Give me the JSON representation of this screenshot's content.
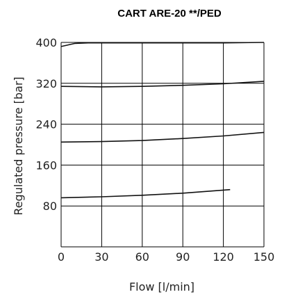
{
  "chart_data": {
    "type": "line",
    "title": "CART  ARE-20 **/PED",
    "xlabel": "Flow [l/min]",
    "ylabel": "Regulated pressure [bar]",
    "xlim": [
      0,
      150
    ],
    "ylim": [
      0,
      400
    ],
    "x_ticks": [
      0,
      30,
      60,
      90,
      120,
      150
    ],
    "y_ticks": [
      80,
      160,
      240,
      320,
      400
    ],
    "grid": true,
    "series": [
      {
        "x": [
          0,
          10,
          20,
          30,
          60,
          90,
          120,
          150
        ],
        "values": [
          392,
          398,
          399,
          399,
          399,
          399,
          399,
          400
        ]
      },
      {
        "x": [
          0,
          30,
          60,
          90,
          120,
          150
        ],
        "values": [
          314,
          313,
          314,
          316,
          319,
          324
        ]
      },
      {
        "x": [
          0,
          30,
          60,
          90,
          120,
          150
        ],
        "values": [
          205,
          206,
          208,
          212,
          217,
          224
        ]
      },
      {
        "x": [
          0,
          30,
          60,
          90,
          125
        ],
        "values": [
          96,
          98,
          101,
          105,
          112
        ]
      }
    ]
  }
}
